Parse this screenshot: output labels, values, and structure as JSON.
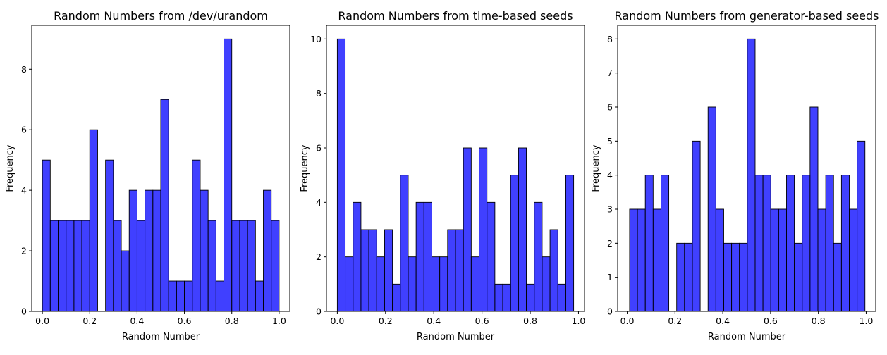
{
  "chart_data": [
    {
      "type": "bar",
      "title": "Random Numbers from /dev/urandom",
      "xlabel": "Random Number",
      "ylabel": "Frequency",
      "bin_range": [
        0.0,
        1.0
      ],
      "bins": 30,
      "values": [
        5,
        3,
        3,
        3,
        3,
        3,
        6,
        0,
        5,
        3,
        2,
        4,
        3,
        4,
        4,
        7,
        1,
        1,
        1,
        5,
        4,
        3,
        1,
        9,
        3,
        3,
        3,
        1,
        4,
        3
      ],
      "xlim": [
        -0.045,
        1.045
      ],
      "ylim": [
        0,
        9.45
      ],
      "xticks": [
        0.0,
        0.2,
        0.4,
        0.6,
        0.8,
        1.0
      ],
      "xtick_labels": [
        "0.0",
        "0.2",
        "0.4",
        "0.6",
        "0.8",
        "1.0"
      ],
      "yticks": [
        0,
        2,
        4,
        6,
        8
      ],
      "ytick_labels": [
        "0",
        "2",
        "4",
        "6",
        "8"
      ],
      "bar_color": "#0000ff",
      "edge_color": "#000000",
      "grid": false
    },
    {
      "type": "bar",
      "title": "Random Numbers from time-based seeds",
      "xlabel": "Random Number",
      "ylabel": "Frequency",
      "bin_range": [
        0.0,
        0.98
      ],
      "bins": 30,
      "values": [
        10,
        2,
        4,
        3,
        3,
        2,
        3,
        1,
        5,
        2,
        4,
        4,
        2,
        2,
        3,
        3,
        6,
        2,
        6,
        4,
        1,
        1,
        5,
        6,
        1,
        4,
        2,
        3,
        1,
        5
      ],
      "xlim": [
        -0.045,
        1.025
      ],
      "ylim": [
        0,
        10.5
      ],
      "xticks": [
        0.0,
        0.2,
        0.4,
        0.6,
        0.8,
        1.0
      ],
      "xtick_labels": [
        "0.0",
        "0.2",
        "0.4",
        "0.6",
        "0.8",
        "1.0"
      ],
      "yticks": [
        0,
        2,
        4,
        6,
        8,
        10
      ],
      "ytick_labels": [
        "0",
        "2",
        "4",
        "6",
        "8",
        "10"
      ],
      "bar_color": "#0000ff",
      "edge_color": "#000000",
      "grid": false
    },
    {
      "type": "bar",
      "title": "Random Numbers from generator-based seeds",
      "xlabel": "Random Number",
      "ylabel": "Frequency",
      "bin_range": [
        0.01,
        0.995
      ],
      "bins": 30,
      "values": [
        3,
        3,
        4,
        3,
        4,
        0,
        2,
        2,
        5,
        0,
        6,
        3,
        2,
        2,
        2,
        8,
        4,
        4,
        3,
        3,
        4,
        2,
        4,
        6,
        3,
        4,
        2,
        4,
        3,
        5
      ],
      "xlim": [
        -0.04,
        1.04
      ],
      "ylim": [
        0,
        8.4
      ],
      "xticks": [
        0.0,
        0.2,
        0.4,
        0.6,
        0.8,
        1.0
      ],
      "xtick_labels": [
        "0.0",
        "0.2",
        "0.4",
        "0.6",
        "0.8",
        "1.0"
      ],
      "yticks": [
        0,
        1,
        2,
        3,
        4,
        5,
        6,
        7,
        8
      ],
      "ytick_labels": [
        "0",
        "1",
        "2",
        "3",
        "4",
        "5",
        "6",
        "7",
        "8"
      ],
      "bar_color": "#0000ff",
      "edge_color": "#000000",
      "grid": false
    }
  ]
}
